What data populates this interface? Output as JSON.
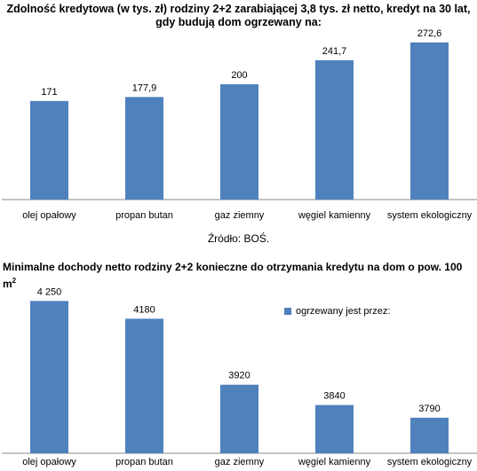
{
  "chart_data": [
    {
      "type": "bar",
      "title": "Zdolność kredytowa (w tys. zł) rodziny 2+2 zarabiającej 3,8 tys. zł netto, kredyt na 30 lat, gdy budują dom ogrzewany na:",
      "categories": [
        "olej opałowy",
        "propan butan",
        "gaz ziemny",
        "węgiel kamienny",
        "system ekologiczny"
      ],
      "values": [
        171,
        177.9,
        200,
        241.7,
        272.6
      ],
      "value_labels": [
        "171",
        "177,9",
        "200",
        "241,7",
        "272,6"
      ],
      "source": "Źródło: BOŚ.",
      "color": "#4f81bd",
      "grid": false,
      "ylim": [
        0,
        300
      ]
    },
    {
      "type": "bar",
      "title": "Minimalne dochody netto rodziny 2+2 konieczne do otrzymania kredytu na dom o pow. 100 m",
      "title_sup": "2",
      "categories": [
        "olej opałowy",
        "propan butan",
        "gaz ziemny",
        "węgiel kamienny",
        "system ekologiczny"
      ],
      "values": [
        4250,
        4180,
        3920,
        3840,
        3790
      ],
      "value_labels": [
        "4 250",
        "4180",
        "3920",
        "3840",
        "3790"
      ],
      "legend": "ogrzewany jest przez:",
      "legend_position": "top-right",
      "color": "#4f81bd",
      "grid": false,
      "ylim": [
        3650,
        4300
      ]
    }
  ]
}
